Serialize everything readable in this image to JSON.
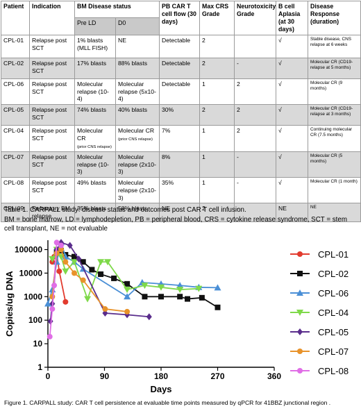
{
  "table": {
    "headers": {
      "patient": "Patient",
      "indication": "Indication",
      "bm_status": "BM Disease status",
      "pre_ld": "Pre LD",
      "d0": "D0",
      "pb_flow": "PB CAR T cell flow (30 days)",
      "max_crs": "Max CRS Grade",
      "neurotox": "Neurotoxicity Grade",
      "bcell": "B cell Aplasia (at 30 days)",
      "response": "Disease Response (duration)"
    },
    "rows": [
      {
        "patient": "CPL-01",
        "indication": "Relapse post SCT",
        "pre_ld": "1% blasts (MLL FISH)",
        "d0": "NE",
        "pb_flow": "Detectable",
        "crs": "2",
        "neuro": "",
        "bcell": "√",
        "response": "Stable disease, CNS relapse at 6 weeks"
      },
      {
        "patient": "CPL-02",
        "indication": "Relapse post SCT",
        "pre_ld": "17% blasts",
        "d0": "88% blasts",
        "pb_flow": "Detectable",
        "crs": "2",
        "neuro": "-",
        "bcell": "√",
        "response": "Molecular CR (CD19- relapse at 5 months)"
      },
      {
        "patient": "CPL-06",
        "indication": "Relapse post SCT",
        "pre_ld": "Molecular relapse (10-4)",
        "d0": "Molecular relapse (5x10-4)",
        "pb_flow": "Detectable",
        "crs": "1",
        "neuro": "2",
        "bcell": "√",
        "response": "Molecular CR (9 months)"
      },
      {
        "patient": "CPL-05",
        "indication": "Relapse post SCT",
        "pre_ld": "74% blasts",
        "d0": "40% blasts",
        "pb_flow": "30%",
        "crs": "2",
        "neuro": "2",
        "bcell": "√",
        "response": "Molecular CR (CD19- relapse at 3 months)"
      },
      {
        "patient": "CPL-04",
        "indication": "Relapse post SCT",
        "pre_ld": "Molecular CR",
        "pre_ld_note": "(prior CNS relapse)",
        "d0": "Molecular CR",
        "d0_note": "(prior CNS relapse)",
        "pb_flow": "7%",
        "crs": "1",
        "neuro": "2",
        "bcell": "√",
        "response": "Continuing molecular CR (7.5 months)"
      },
      {
        "patient": "CPL-07",
        "indication": "Relapse post SCT",
        "pre_ld": "Molecular relapse (10-3)",
        "d0": "Molecular relapse (2x10-3)",
        "pb_flow": "8%",
        "crs": "1",
        "neuro": "-",
        "bcell": "√",
        "response": "Molecular CR (5 months)"
      },
      {
        "patient": "CPL-08",
        "indication": "Relapse post SCT",
        "pre_ld": "49% blasts",
        "d0": "Molecular relapse (2x10-3)",
        "pb_flow": "35%",
        "crs": "1",
        "neuro": "-",
        "bcell": "√",
        "response": "Molecular CR (1 month)"
      },
      {
        "patient": "CPL-09",
        "indication": "Refractory BM relapse",
        "pre_ld": "35% blasts",
        "d0": "58% blasts",
        "pb_flow": "NE",
        "crs": "2",
        "neuro": "-",
        "bcell": "NE",
        "response": "NE"
      }
    ]
  },
  "table_caption": {
    "line1": "Table 1. CARPALL study: disease status and outcomes post CAR T cell infusion.",
    "line2": "BM = bone marrow, LD = lymphodepletion,  PB = peripheral blood, CRS = cytokine release syndrome, SCT = stem cell transplant, NE = not evaluable"
  },
  "figure_caption": "Figure 1. CARPALL study: CAR T cell persistence at evaluable time points measured by qPCR for 41BBZ junctional region .",
  "chart_data": {
    "type": "line",
    "xlabel": "Days",
    "ylabel": "Copies/ug DNA",
    "x_ticks": [
      0,
      90,
      180,
      270,
      360
    ],
    "y_ticks": [
      1,
      10,
      100,
      1000,
      10000,
      100000
    ],
    "xlim": [
      0,
      360
    ],
    "ylim": [
      1,
      250000
    ],
    "y_scale": "log",
    "legend_position": "right",
    "series": [
      {
        "name": "CPL-01",
        "color": "#e23b2e",
        "marker": "circle",
        "points": [
          [
            7,
            30000
          ],
          [
            10,
            50000
          ],
          [
            14,
            70000
          ],
          [
            18,
            12000
          ],
          [
            28,
            600
          ]
        ]
      },
      {
        "name": "CPL-02",
        "color": "#111111",
        "marker": "square",
        "points": [
          [
            14,
            80000
          ],
          [
            21,
            90000
          ],
          [
            28,
            60000
          ],
          [
            42,
            50000
          ],
          [
            56,
            30000
          ],
          [
            70,
            14000
          ],
          [
            84,
            9000
          ],
          [
            105,
            6000
          ],
          [
            126,
            3500
          ],
          [
            154,
            1000
          ],
          [
            180,
            1000
          ],
          [
            210,
            1000
          ],
          [
            222,
            800
          ],
          [
            245,
            900
          ],
          [
            270,
            350
          ]
        ]
      },
      {
        "name": "CPL-06",
        "color": "#4a8fd6",
        "marker": "triangle-up",
        "points": [
          [
            0,
            500
          ],
          [
            7,
            2000
          ],
          [
            14,
            30000
          ],
          [
            21,
            200000
          ],
          [
            28,
            50000
          ],
          [
            42,
            30000
          ],
          [
            56,
            15000
          ],
          [
            126,
            1000
          ],
          [
            150,
            4000
          ],
          [
            180,
            3500
          ],
          [
            210,
            3000
          ],
          [
            240,
            2500
          ],
          [
            270,
            2400
          ]
        ]
      },
      {
        "name": "CPL-04",
        "color": "#7fd94a",
        "marker": "triangle-down",
        "points": [
          [
            7,
            40000
          ],
          [
            14,
            100000
          ],
          [
            21,
            50000
          ],
          [
            28,
            12000
          ],
          [
            42,
            30000
          ],
          [
            63,
            800
          ],
          [
            84,
            30000
          ],
          [
            95,
            30000
          ],
          [
            126,
            2000
          ],
          [
            154,
            3000
          ],
          [
            180,
            2500
          ],
          [
            210,
            2000
          ],
          [
            240,
            2200
          ]
        ]
      },
      {
        "name": "CPL-05",
        "color": "#5a2d8c",
        "marker": "diamond",
        "points": [
          [
            4,
            90
          ],
          [
            7,
            500
          ],
          [
            10,
            3000
          ],
          [
            14,
            100000
          ],
          [
            21,
            200000
          ],
          [
            35,
            150000
          ],
          [
            49,
            40000
          ],
          [
            91,
            200
          ],
          [
            126,
            170
          ],
          [
            161,
            140
          ]
        ]
      },
      {
        "name": "CPL-07",
        "color": "#e8932b",
        "marker": "circle",
        "points": [
          [
            7,
            1000
          ],
          [
            14,
            70000
          ],
          [
            21,
            100000
          ],
          [
            28,
            30000
          ],
          [
            42,
            10000
          ],
          [
            56,
            5000
          ],
          [
            91,
            300
          ],
          [
            126,
            230
          ]
        ]
      },
      {
        "name": "CPL-08",
        "color": "#e06ee6",
        "marker": "circle",
        "points": [
          [
            3,
            20
          ],
          [
            7,
            300
          ],
          [
            10,
            3000
          ],
          [
            14,
            200000
          ],
          [
            21,
            150000
          ]
        ]
      }
    ]
  }
}
